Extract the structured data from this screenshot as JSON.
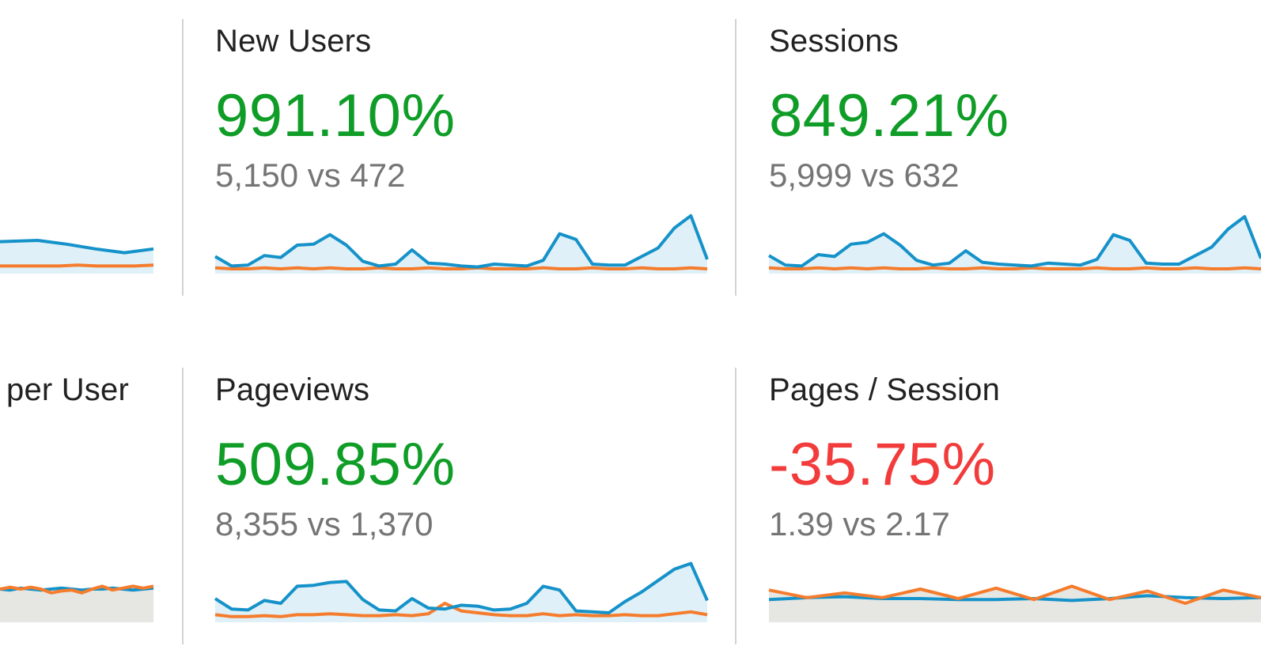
{
  "metrics": [
    {
      "id": "users",
      "title": "",
      "change": "",
      "comparison": "",
      "trend": "up",
      "fill_style": "primary",
      "primary": [
        56,
        60,
        57,
        55,
        52,
        49,
        51,
        46,
        44,
        42,
        38,
        33,
        34,
        35,
        31,
        26,
        22,
        26
      ],
      "secondary": [
        9,
        8,
        8,
        8,
        8,
        7,
        8,
        8,
        8,
        8,
        8,
        8,
        7,
        8,
        8,
        8,
        8,
        8,
        8,
        8,
        8,
        8,
        9,
        8,
        8,
        8,
        9
      ]
    },
    {
      "id": "new-users",
      "title": "New Users",
      "change": "991.10%",
      "comparison": "5,150 vs 472",
      "trend": "up",
      "fill_style": "primary",
      "primary": [
        18,
        8,
        9,
        19,
        17,
        30,
        31,
        41,
        30,
        13,
        8,
        10,
        25,
        11,
        10,
        8,
        7,
        10,
        9,
        8,
        14,
        42,
        36,
        10,
        9,
        9,
        18,
        27,
        48,
        61,
        15
      ],
      "secondary": [
        6,
        5,
        5,
        6,
        5,
        6,
        5,
        6,
        5,
        5,
        6,
        5,
        5,
        6,
        5,
        5,
        6,
        5,
        5,
        5,
        6,
        5,
        5,
        6,
        5,
        5,
        6,
        5,
        5,
        6,
        5
      ]
    },
    {
      "id": "sessions",
      "title": "Sessions",
      "change": "849.21%",
      "comparison": "5,999 vs 632",
      "trend": "up",
      "fill_style": "primary",
      "primary": [
        19,
        9,
        8,
        20,
        18,
        31,
        33,
        42,
        30,
        14,
        9,
        11,
        24,
        12,
        10,
        9,
        8,
        11,
        10,
        9,
        15,
        41,
        35,
        11,
        10,
        10,
        19,
        28,
        47,
        60,
        16
      ],
      "secondary": [
        6,
        5,
        5,
        6,
        5,
        6,
        5,
        6,
        5,
        5,
        6,
        5,
        5,
        6,
        5,
        5,
        6,
        5,
        5,
        5,
        6,
        5,
        5,
        6,
        5,
        5,
        6,
        5,
        5,
        6,
        5
      ]
    },
    {
      "id": "sessions-per-user",
      "title": "per User",
      "change": "",
      "comparison": "",
      "trend": "down",
      "fill_style": "secondary",
      "primary": [
        35,
        34,
        36,
        35,
        34,
        35,
        36,
        35,
        34,
        35,
        35,
        36,
        35,
        34,
        35,
        36
      ],
      "secondary": [
        35,
        37,
        35,
        37,
        35,
        31,
        33,
        34,
        31,
        35,
        38,
        34,
        36,
        38,
        36,
        38
      ]
    },
    {
      "id": "pageviews",
      "title": "Pageviews",
      "change": "509.85%",
      "comparison": "8,355 vs 1,370",
      "trend": "up",
      "fill_style": "primary",
      "primary": [
        25,
        14,
        13,
        23,
        20,
        38,
        39,
        42,
        43,
        24,
        13,
        12,
        25,
        15,
        14,
        18,
        17,
        13,
        14,
        20,
        38,
        34,
        12,
        11,
        10,
        22,
        32,
        44,
        56,
        62,
        23
      ],
      "secondary": [
        8,
        6,
        6,
        7,
        6,
        8,
        8,
        9,
        8,
        7,
        7,
        8,
        7,
        9,
        20,
        12,
        10,
        8,
        7,
        7,
        9,
        7,
        8,
        7,
        7,
        8,
        7,
        7,
        9,
        11,
        8
      ]
    },
    {
      "id": "pages-per-session",
      "title": "Pages / Session",
      "change": "-35.75%",
      "comparison": "1.39 vs 2.17",
      "trend": "down",
      "fill_style": "secondary",
      "primary": [
        24,
        26,
        27,
        25,
        25,
        24,
        24,
        25,
        23,
        25,
        28,
        26,
        25,
        26
      ],
      "secondary": [
        34,
        26,
        31,
        26,
        35,
        25,
        36,
        24,
        38,
        24,
        33,
        20,
        34,
        26
      ]
    }
  ],
  "colors": {
    "positive": "#0f9d27",
    "negative": "#f23c3c",
    "title": "#222222",
    "comparison": "#757575",
    "primary_line": "#1592c9",
    "primary_fill": "#dff0f8",
    "secondary_line": "#f57c2c",
    "secondary_fill": "#e6e6e3",
    "divider": "#d3d3d3"
  }
}
